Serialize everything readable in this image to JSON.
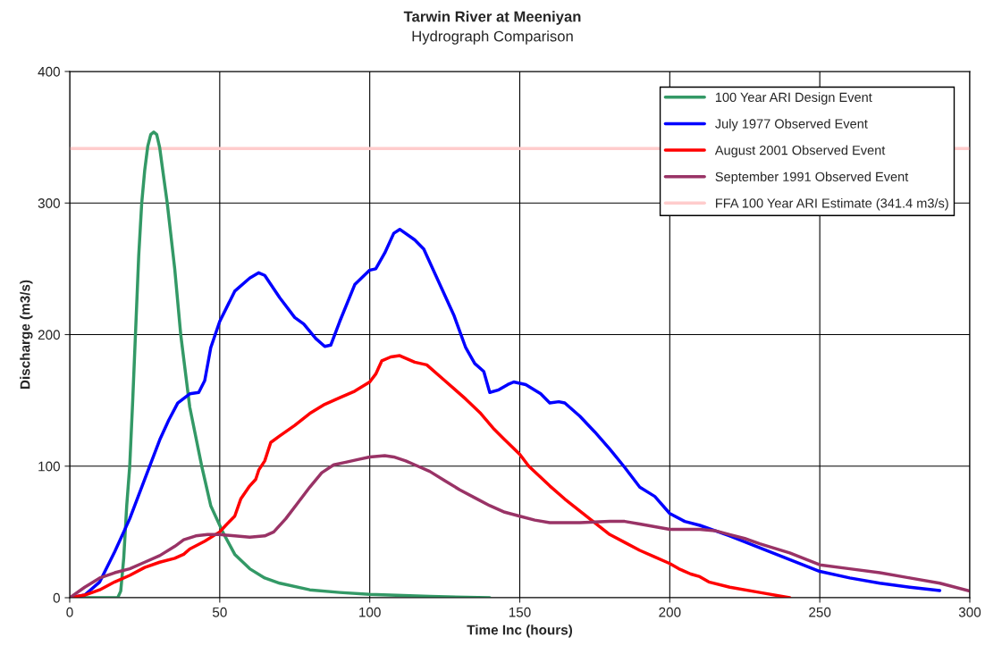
{
  "chart_data": {
    "type": "line",
    "title": "Tarwin River at Meeniyan",
    "subtitle": "Hydrograph Comparison",
    "xlabel": "Time Inc (hours)",
    "ylabel": "Discharge (m3/s)",
    "xlim": [
      0,
      300
    ],
    "xticks": [
      0,
      50,
      100,
      150,
      200,
      250,
      300
    ],
    "ylim": [
      0,
      400
    ],
    "yticks": [
      0,
      100,
      200,
      300,
      400
    ],
    "grid": true,
    "legend": "top right",
    "marker": "none",
    "line_style": "solid",
    "series": [
      {
        "name": "100 Year ARI Design Event",
        "color": "#339966",
        "x": [
          0,
          16,
          17,
          18,
          19,
          20,
          21,
          22,
          23,
          24,
          25,
          26,
          27,
          28,
          29,
          30,
          31,
          32.5,
          35,
          37,
          40,
          44,
          47,
          51,
          55,
          60,
          65,
          70,
          80,
          90,
          100,
          120,
          140
        ],
        "values": [
          0,
          0,
          5,
          30,
          70,
          100,
          150,
          205,
          260,
          300,
          325,
          343,
          352,
          354,
          352,
          342,
          325,
          300,
          250,
          200,
          145,
          100,
          70,
          50,
          33,
          22,
          15,
          11,
          6,
          4,
          2.5,
          1,
          0
        ]
      },
      {
        "name": "July 1977 Observed Event",
        "color": "#0000ff",
        "x": [
          0,
          5,
          10,
          15,
          20,
          25,
          30,
          33,
          36,
          40,
          43,
          45,
          47,
          50,
          55,
          60,
          63,
          65,
          70,
          75,
          78,
          82,
          85,
          87,
          90,
          95,
          100,
          102,
          105,
          108,
          110,
          115,
          118,
          122,
          128,
          132,
          135,
          138,
          140,
          143,
          146,
          148,
          152,
          157,
          160,
          163,
          165,
          170,
          175,
          180,
          185,
          190,
          195,
          200,
          205,
          210,
          215,
          220,
          230,
          240,
          250,
          260,
          270,
          280,
          290
        ],
        "values": [
          0,
          2,
          12,
          35,
          60,
          90,
          120,
          135,
          148,
          155,
          156,
          165,
          190,
          210,
          233,
          243,
          247,
          245,
          228,
          213,
          208,
          197,
          191,
          192,
          210,
          238,
          249,
          250,
          262,
          277,
          280,
          272,
          265,
          245,
          215,
          190,
          178,
          172,
          156,
          158,
          162,
          164,
          162,
          155,
          148,
          149,
          148,
          138,
          126,
          113,
          99,
          84,
          77,
          64,
          58,
          55,
          51,
          47,
          38,
          29,
          20,
          15,
          11,
          8,
          5.5
        ]
      },
      {
        "name": "August 2001 Observed Event",
        "color": "#ff0000",
        "x": [
          0,
          5,
          10,
          15,
          20,
          25,
          30,
          35,
          38,
          40,
          45,
          50,
          52,
          55,
          57,
          60,
          62,
          63,
          65,
          67,
          70,
          75,
          80,
          85,
          90,
          95,
          100,
          102,
          104,
          107,
          110,
          115,
          119,
          125,
          132,
          137,
          141.5,
          145,
          150,
          153,
          160,
          165,
          170,
          175,
          180,
          185,
          190,
          195,
          200,
          203,
          207,
          210,
          213,
          220,
          230,
          240
        ],
        "values": [
          0,
          2,
          6,
          12,
          17,
          23,
          27,
          30,
          33,
          37,
          43,
          50,
          55,
          62,
          75,
          85,
          90,
          97,
          104,
          118,
          123,
          131,
          140,
          147,
          152,
          157,
          164,
          170,
          180,
          183,
          184,
          179,
          177,
          165,
          151,
          140,
          128,
          120,
          109,
          100,
          85,
          75,
          66,
          57,
          48,
          42,
          36,
          31,
          26,
          22,
          18,
          16,
          12,
          8,
          4,
          0
        ]
      },
      {
        "name": "September 1991 Observed Event",
        "color": "#993366",
        "x": [
          0,
          5,
          10,
          15,
          20,
          25,
          30,
          35,
          38,
          42,
          46,
          50,
          55,
          60,
          65,
          68,
          72,
          76,
          80,
          84,
          88,
          92,
          96,
          100,
          105,
          108,
          112,
          115,
          120,
          125,
          130,
          135,
          140,
          145,
          150,
          155,
          160,
          170,
          180,
          185,
          190,
          195,
          200,
          205,
          210,
          215,
          220,
          225,
          230,
          240,
          250,
          260,
          270,
          280,
          290,
          300
        ],
        "values": [
          0,
          8,
          15,
          19,
          22,
          27,
          32,
          39,
          44,
          47,
          48,
          48,
          47,
          46,
          47,
          50,
          60,
          72,
          84,
          95,
          101,
          103,
          105,
          107,
          108,
          107,
          104,
          101,
          96,
          89,
          82,
          76,
          70,
          65,
          62,
          59,
          57,
          57,
          58,
          58,
          56,
          54,
          52,
          52,
          52,
          51,
          48,
          45,
          41,
          34,
          25,
          22,
          19,
          15,
          11,
          5
        ]
      }
    ],
    "ref_lines": [
      {
        "axis": "y",
        "value": 341.4,
        "label": "FFA 100 Year ARI Estimate (341.4 m3/s)",
        "color": "#ffcccc",
        "line_style": "solid"
      }
    ]
  }
}
